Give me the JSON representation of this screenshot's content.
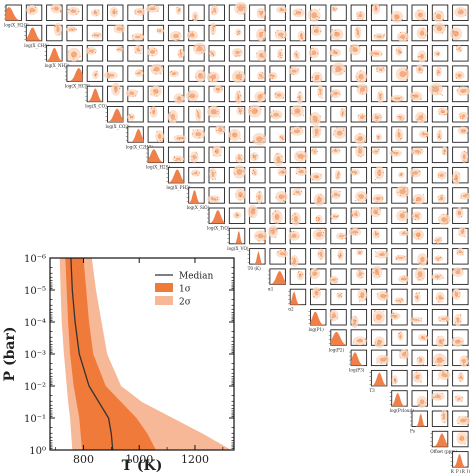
{
  "chart_data": [
    {
      "type": "corner",
      "parameters": [
        {
          "label": "log(X_H2O)"
        },
        {
          "label": "log(X_CH4)"
        },
        {
          "label": "log(X_NH3)"
        },
        {
          "label": "log(X_HCN)"
        },
        {
          "label": "log(X_CO)"
        },
        {
          "label": "log(X_CO2)"
        },
        {
          "label": "log(X_C2H2)"
        },
        {
          "label": "log(X_H2S)"
        },
        {
          "label": "log(X_PH3)"
        },
        {
          "label": "log(X_SiO)"
        },
        {
          "label": "log(X_TiO)"
        },
        {
          "label": "log(X_VO)"
        },
        {
          "label": "T0 (K)"
        },
        {
          "label": "α1"
        },
        {
          "label": "α2"
        },
        {
          "label": "log(P1)"
        },
        {
          "label": "log(P2)"
        },
        {
          "label": "log(P3)"
        },
        {
          "label": "T3"
        },
        {
          "label": "log(Pcloud)"
        },
        {
          "label": "Ps"
        },
        {
          "label": "Offset (ppm)"
        },
        {
          "label": "R_P (R_J)"
        }
      ],
      "color": "#f07a3a",
      "hist_color": "#f0804a"
    },
    {
      "type": "area",
      "xlabel": "T (K)",
      "ylabel": "P (bar)",
      "xlim": [
        680,
        1340
      ],
      "ylim_log10": [
        0,
        -6
      ],
      "xticks": [
        800,
        1000,
        1200
      ],
      "yticks": [
        {
          "exp": -6,
          "label": "10⁻⁶"
        },
        {
          "exp": -5,
          "label": "10⁻⁵"
        },
        {
          "exp": -4,
          "label": "10⁻⁴"
        },
        {
          "exp": -3,
          "label": "10⁻³"
        },
        {
          "exp": -2,
          "label": "10⁻²"
        },
        {
          "exp": -1,
          "label": "10⁻¹"
        },
        {
          "exp": 0,
          "label": "10⁰"
        }
      ],
      "log_p": [
        -6,
        -5,
        -4,
        -3,
        -2,
        -1.5,
        -1,
        -0.5,
        0
      ],
      "median": [
        755,
        760,
        770,
        785,
        820,
        855,
        890,
        900,
        905
      ],
      "one_sigma_low": [
        735,
        740,
        745,
        752,
        765,
        775,
        785,
        790,
        795
      ],
      "one_sigma_high": [
        800,
        810,
        820,
        835,
        880,
        935,
        990,
        1030,
        1060
      ],
      "two_sigma_low": [
        715,
        718,
        722,
        730,
        740,
        745,
        752,
        756,
        760
      ],
      "two_sigma_high": [
        830,
        845,
        865,
        885,
        935,
        1010,
        1120,
        1230,
        1330
      ],
      "legend": [
        {
          "label": "Median",
          "color": "#333333",
          "kind": "line"
        },
        {
          "label": "1σ",
          "color": "#f07a3a",
          "kind": "patch"
        },
        {
          "label": "2σ",
          "color": "#f6b896",
          "kind": "patch"
        }
      ],
      "legend_position": "top-right"
    }
  ]
}
